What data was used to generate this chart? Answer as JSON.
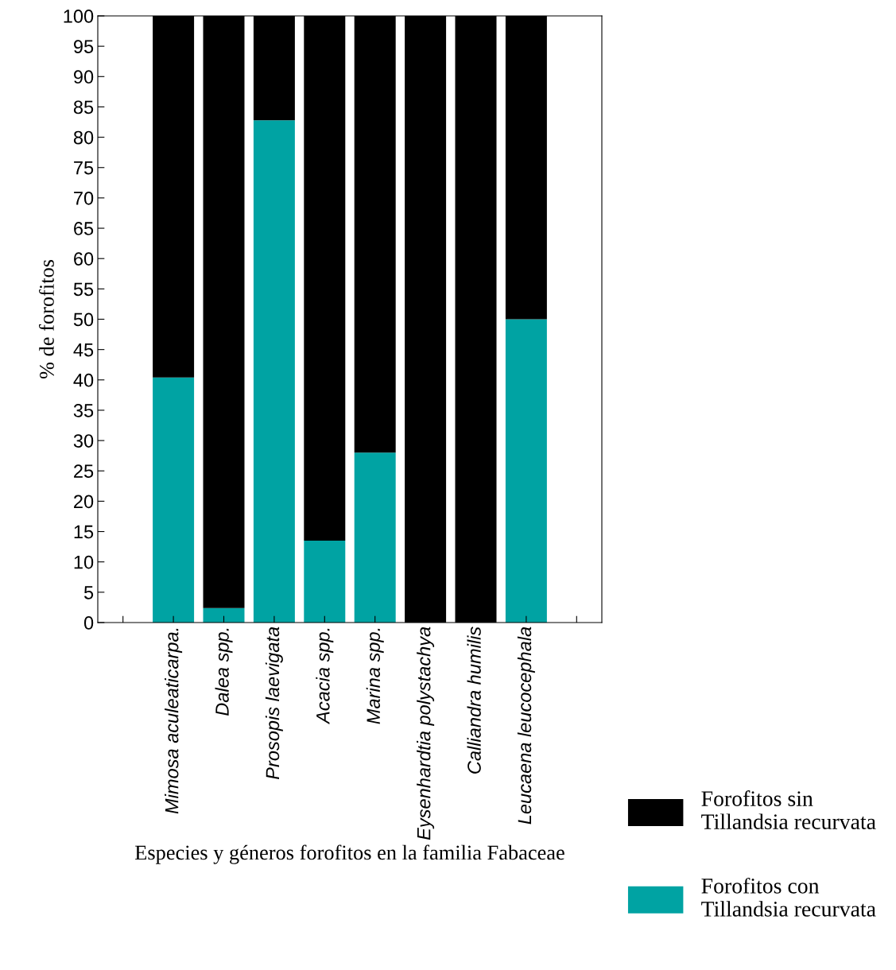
{
  "chart_data": {
    "type": "bar",
    "stacked": true,
    "xlabel": "Especies y géneros forofitos en la familia Fabaceae",
    "ylabel": "% de forofitos",
    "categories": [
      null,
      "Mimosa aculeaticarpa.",
      "Dalea spp.",
      "Prosopis laevigata",
      "Acacia spp.",
      "Marina spp.",
      "Eysenhardtia polystachya",
      "Calliandra humilis",
      "Leucaena leucocephala",
      null
    ],
    "series": [
      {
        "name": "Forofitos con\nTillandsia recurvata",
        "color": "#00a3a3",
        "values": [
          null,
          40.4,
          2.4,
          82.8,
          13.5,
          28.0,
          0,
          0,
          50.0,
          null
        ]
      },
      {
        "name": "Forofitos sin\nTillandsia recurvata",
        "color": "#000000",
        "values": [
          null,
          59.6,
          97.6,
          17.2,
          86.5,
          72.0,
          100,
          100,
          50.0,
          null
        ]
      }
    ],
    "ylim": [
      0,
      100
    ],
    "yticks": [
      0,
      5,
      10,
      15,
      20,
      25,
      30,
      35,
      40,
      45,
      50,
      55,
      60,
      65,
      70,
      75,
      80,
      85,
      90,
      95,
      100
    ],
    "grid": false,
    "legend": "bottom right"
  }
}
